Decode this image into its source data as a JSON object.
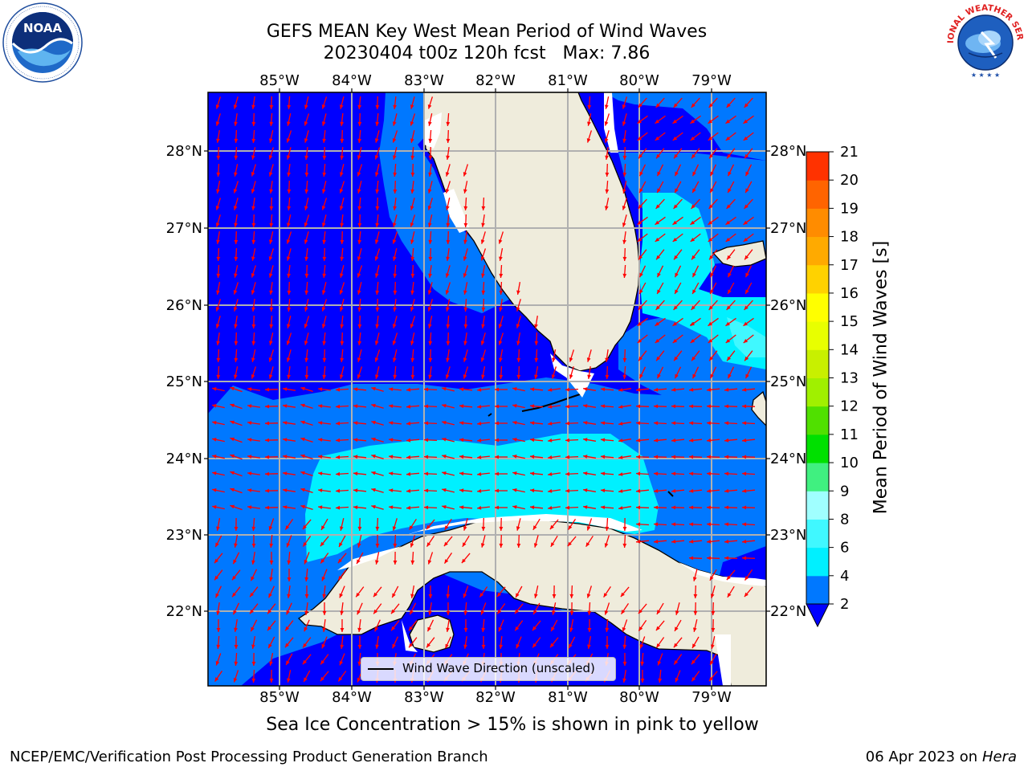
{
  "title": {
    "line1": "GEFS MEAN Key West Mean Period of Wind Waves",
    "line2": "20230404 t00z 120h fcst   Max: 7.86"
  },
  "map": {
    "lon_labels": [
      "85°W",
      "84°W",
      "83°W",
      "82°W",
      "81°W",
      "80°W",
      "79°W"
    ],
    "lat_labels": [
      "28°N",
      "27°N",
      "26°N",
      "25°N",
      "24°N",
      "23°N",
      "22°N"
    ],
    "legend_label": "Wind Wave Direction (unscaled)",
    "arrow_color": "#ff0000",
    "land_color": "#efecdc"
  },
  "colorbar": {
    "label": "Mean Period of Wind Waves [s]",
    "ticks": [
      "2",
      "4",
      "6",
      "8",
      "9",
      "10",
      "11",
      "12",
      "13",
      "14",
      "15",
      "16",
      "17",
      "18",
      "19",
      "20",
      "21"
    ],
    "colors": [
      "#0078ff",
      "#00f0ff",
      "#40f8ff",
      "#a0ffff",
      "#40f080",
      "#00e000",
      "#50e000",
      "#a0f000",
      "#c8f000",
      "#e8ff00",
      "#ffff00",
      "#ffd200",
      "#ffaa00",
      "#ff8c00",
      "#ff6400",
      "#ff3200",
      "#ff0000"
    ],
    "under_color": "#0000ff"
  },
  "ice_note": "Sea Ice Concentration > 15% is shown in pink to yellow",
  "footer": {
    "left": "NCEP/EMC/Verification Post Processing Product Generation Branch",
    "right_date": "06 Apr 2023 on ",
    "right_host": "Hera"
  },
  "logos": {
    "noaa_text": "NOAA",
    "nws_text": "NATIONAL WEATHER SERVICE"
  }
}
